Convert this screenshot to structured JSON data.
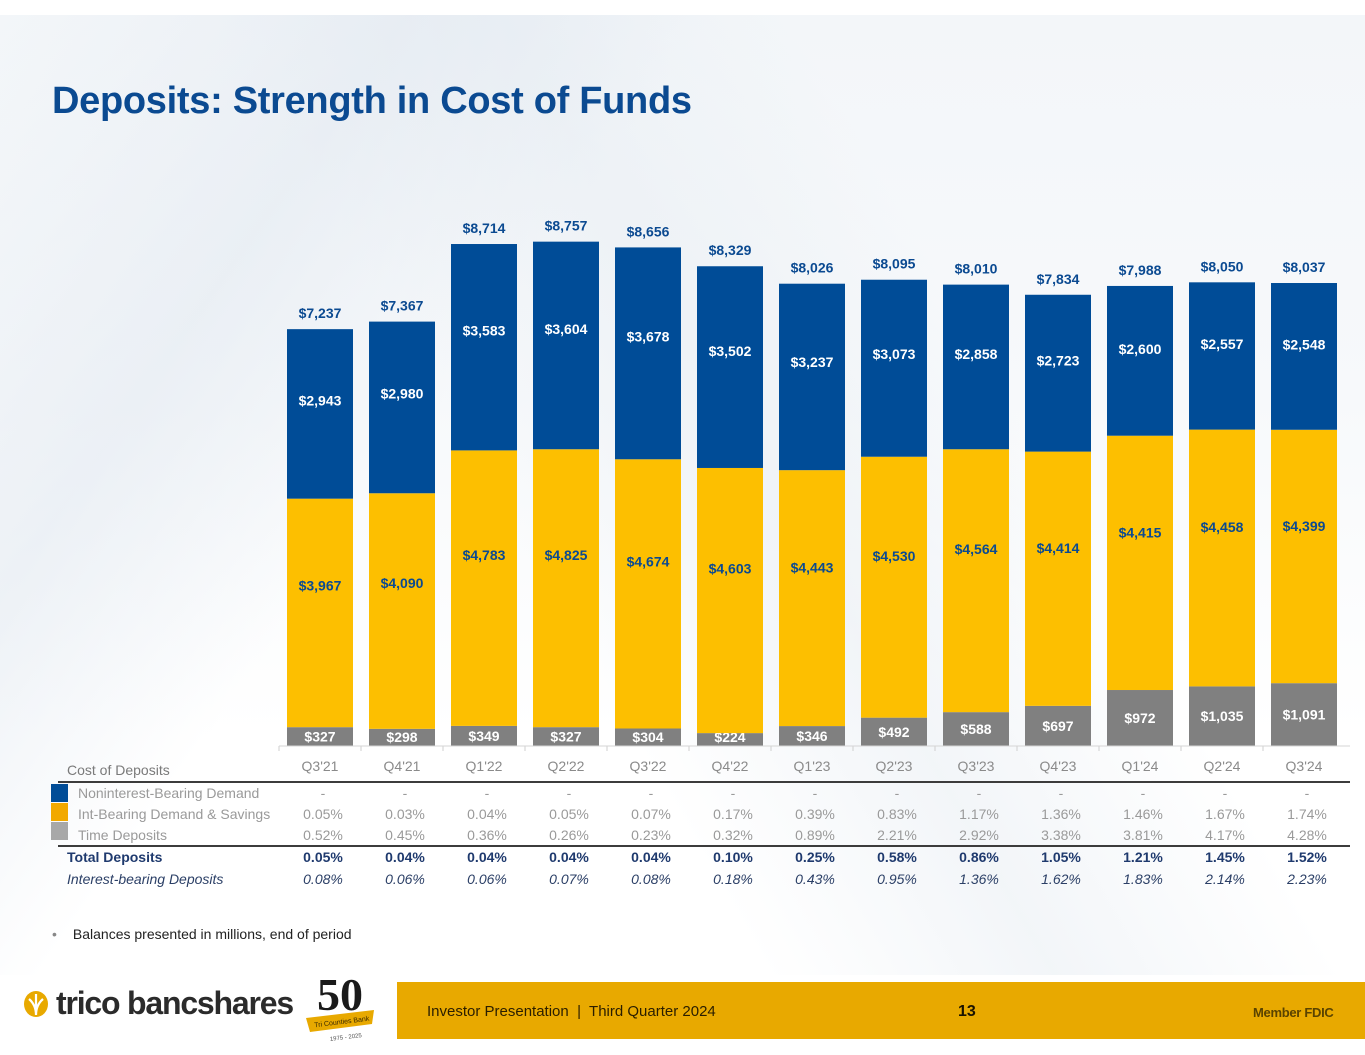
{
  "slide": {
    "title": "Deposits: Strength in Cost of Funds",
    "note": "Balances presented in millions, end of period",
    "footer": {
      "presentation": "Investor Presentation  |  Third Quarter 2024",
      "page_number": "13",
      "member": "Member FDIC",
      "logo_text": "trico bancshares",
      "anniversary_number": "50",
      "anniversary_ribbon": "Tri Counties Bank",
      "anniversary_years": "1975 - 2025"
    },
    "colors": {
      "noninterest": "#004c97",
      "int_bearing": "#fdbf00",
      "time": "#808080",
      "title": "#0b4a91",
      "footer_bar": "#e8a900"
    }
  },
  "chart_data": {
    "type": "bar",
    "stacked": true,
    "title": "Deposits: Strength in Cost of Funds",
    "xlabel": "",
    "ylabel": "",
    "units": "$ millions",
    "ylim": [
      0,
      9000
    ],
    "grid": false,
    "categories": [
      "Q3'21",
      "Q4'21",
      "Q1'22",
      "Q2'22",
      "Q3'22",
      "Q4'22",
      "Q1'23",
      "Q2'23",
      "Q3'23",
      "Q4'23",
      "Q1'24",
      "Q2'24",
      "Q3'24"
    ],
    "series": [
      {
        "name": "Time Deposits",
        "color": "#808080",
        "values": [
          327,
          298,
          349,
          327,
          304,
          224,
          346,
          492,
          588,
          697,
          972,
          1035,
          1091
        ],
        "labels": [
          "$327",
          "$298",
          "$349",
          "$327",
          "$304",
          "$224",
          "$346",
          "$492",
          "$588",
          "$697",
          "$972",
          "$1,035",
          "$1,091"
        ]
      },
      {
        "name": "Int-Bearing Demand & Savings",
        "color": "#fdbf00",
        "values": [
          3967,
          4090,
          4783,
          4825,
          4674,
          4603,
          4443,
          4530,
          4564,
          4414,
          4415,
          4458,
          4399
        ],
        "labels": [
          "$3,967",
          "$4,090",
          "$4,783",
          "$4,825",
          "$4,674",
          "$4,603",
          "$4,443",
          "$4,530",
          "$4,564",
          "$4,414",
          "$4,415",
          "$4,458",
          "$4,399"
        ]
      },
      {
        "name": "Noninterest-Bearing Demand",
        "color": "#004c97",
        "values": [
          2943,
          2980,
          3583,
          3604,
          3678,
          3502,
          3237,
          3073,
          2858,
          2723,
          2600,
          2557,
          2548
        ],
        "labels": [
          "$2,943",
          "$2,980",
          "$3,583",
          "$3,604",
          "$3,678",
          "$3,502",
          "$3,237",
          "$3,073",
          "$2,858",
          "$2,723",
          "$2,600",
          "$2,557",
          "$2,548"
        ]
      }
    ],
    "totals": [
      7237,
      7367,
      8714,
      8757,
      8656,
      8329,
      8026,
      8095,
      8010,
      7834,
      7988,
      8050,
      8037
    ],
    "total_labels": [
      "$7,237",
      "$7,367",
      "$8,714",
      "$8,757",
      "$8,656",
      "$8,329",
      "$8,026",
      "$8,095",
      "$8,010",
      "$7,834",
      "$7,988",
      "$8,050",
      "$8,037"
    ]
  },
  "cost_table": {
    "header": "Cost of Deposits",
    "columns": [
      "Q3'21",
      "Q4'21",
      "Q1'22",
      "Q2'22",
      "Q3'22",
      "Q4'22",
      "Q1'23",
      "Q2'23",
      "Q3'23",
      "Q4'23",
      "Q1'24",
      "Q2'24",
      "Q3'24"
    ],
    "rows": [
      {
        "label": "Noninterest-Bearing Demand",
        "values": [
          "-",
          "-",
          "-",
          "-",
          "-",
          "-",
          "-",
          "-",
          "-",
          "-",
          "-",
          "-",
          "-"
        ]
      },
      {
        "label": "Int-Bearing Demand & Savings",
        "values": [
          "0.05%",
          "0.03%",
          "0.04%",
          "0.05%",
          "0.07%",
          "0.17%",
          "0.39%",
          "0.83%",
          "1.17%",
          "1.36%",
          "1.46%",
          "1.67%",
          "1.74%"
        ]
      },
      {
        "label": "Time Deposits",
        "values": [
          "0.52%",
          "0.45%",
          "0.36%",
          "0.26%",
          "0.23%",
          "0.32%",
          "0.89%",
          "2.21%",
          "2.92%",
          "3.38%",
          "3.81%",
          "4.17%",
          "4.28%"
        ]
      }
    ],
    "total_row": {
      "label": "Total Deposits",
      "values": [
        "0.05%",
        "0.04%",
        "0.04%",
        "0.04%",
        "0.04%",
        "0.10%",
        "0.25%",
        "0.58%",
        "0.86%",
        "1.05%",
        "1.21%",
        "1.45%",
        "1.52%"
      ]
    },
    "ib_row": {
      "label": "Interest-bearing Deposits",
      "values": [
        "0.08%",
        "0.06%",
        "0.06%",
        "0.07%",
        "0.08%",
        "0.18%",
        "0.43%",
        "0.95%",
        "1.36%",
        "1.62%",
        "1.83%",
        "2.14%",
        "2.23%"
      ]
    }
  }
}
